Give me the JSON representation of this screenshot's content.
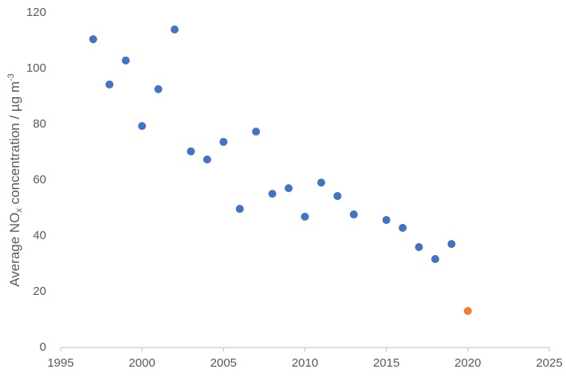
{
  "chart_data": {
    "type": "scatter",
    "ylabel": [
      "Average NO",
      "x",
      " concentration / µg m",
      "-3"
    ],
    "series": [
      {
        "color": "#4472c4",
        "x": [
          1997,
          1998,
          1999,
          2000,
          2001,
          2002,
          2003,
          2004,
          2005,
          2006,
          2007,
          2008,
          2009,
          2010,
          2011,
          2012,
          2013,
          2015,
          2016,
          2017,
          2018,
          2019
        ],
        "values": [
          110.5,
          94.3,
          102.9,
          79.4,
          92.6,
          114,
          70.3,
          67.4,
          73.7,
          49.7,
          77.4,
          55.1,
          57.1,
          46.9,
          59.1,
          54.3,
          47.7,
          45.7,
          42.9,
          36,
          31.7,
          37.1
        ]
      },
      {
        "color": "#ed7d31",
        "x": [
          2020
        ],
        "values": [
          13.1
        ]
      }
    ],
    "xlim": [
      1995,
      2025
    ],
    "xticks": [
      1995,
      2000,
      2005,
      2010,
      2015,
      2020,
      2025
    ],
    "ylim": [
      0,
      120
    ],
    "yticks": [
      0,
      20,
      40,
      60,
      80,
      100,
      120
    ],
    "grid": false
  }
}
